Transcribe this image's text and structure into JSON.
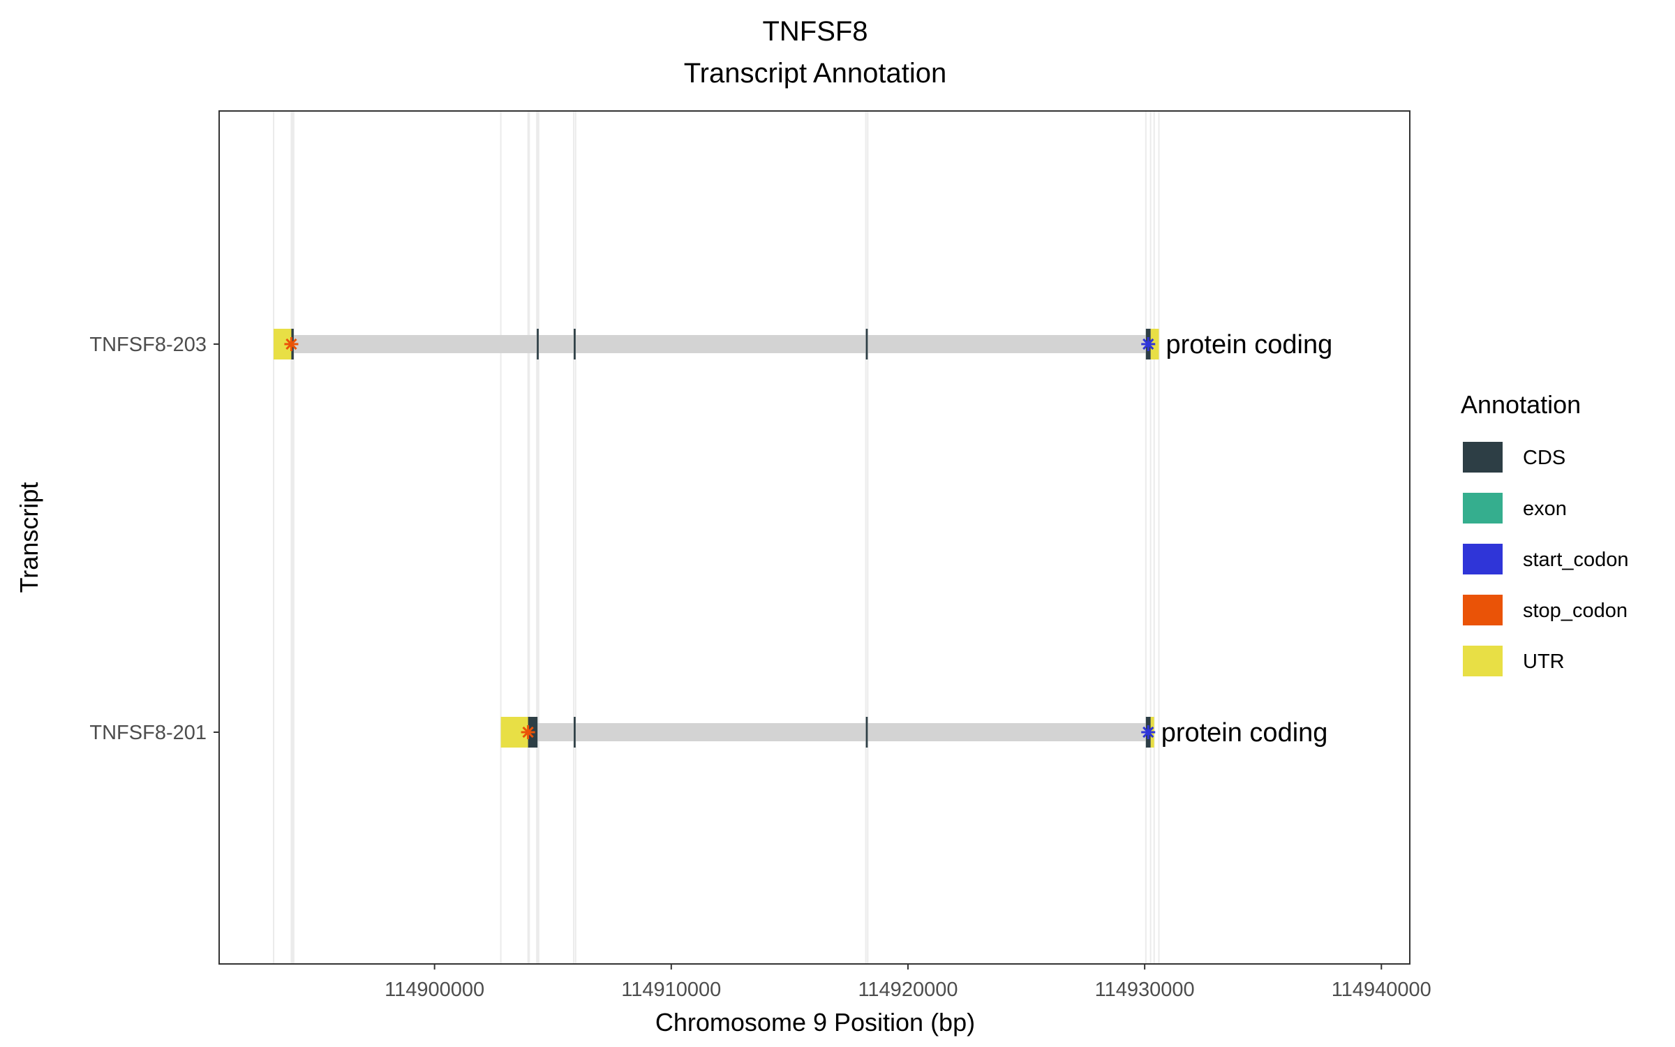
{
  "chart_data": {
    "type": "gene-transcript-annotation",
    "title": "TNFSF8",
    "subtitle": "Transcript Annotation",
    "xlabel": "Chromosome 9 Position (bp)",
    "ylabel": "Transcript",
    "xlim": [
      114890900,
      114941200
    ],
    "x_ticks": [
      114900000,
      114910000,
      114920000,
      114930000,
      114940000
    ],
    "x_tick_labels": [
      "114900000",
      "114910000",
      "114920000",
      "114930000",
      "114940000"
    ],
    "grid": true,
    "legend": {
      "title": "Annotation",
      "position": "right",
      "entries": [
        {
          "label": "CDS",
          "color": "#2d3e45"
        },
        {
          "label": "exon",
          "color": "#35ae8e"
        },
        {
          "label": "start_codon",
          "color": "#2f35d8"
        },
        {
          "label": "stop_codon",
          "color": "#ea5307"
        },
        {
          "label": "UTR",
          "color": "#e8df45"
        }
      ]
    },
    "intron_color": "#d3d3d3",
    "transcripts": [
      {
        "name": "TNFSF8-203",
        "biotype_label": "protein coding",
        "start": 114893200,
        "end": 114930600,
        "utr": [
          [
            114893200,
            114894000
          ],
          [
            114930250,
            114930600
          ]
        ],
        "cds": [
          [
            114893950,
            114894050
          ],
          [
            114904320,
            114904400
          ],
          [
            114905880,
            114905960
          ],
          [
            114918220,
            114918300
          ],
          [
            114930050,
            114930250
          ]
        ],
        "stop_codon": 114893950,
        "start_codon": 114930150
      },
      {
        "name": "TNFSF8-201",
        "biotype_label": "protein coding",
        "start": 114902800,
        "end": 114930400,
        "utr": [
          [
            114902800,
            114904000
          ],
          [
            114930250,
            114930400
          ]
        ],
        "cds": [
          [
            114903950,
            114904350
          ],
          [
            114905880,
            114905960
          ],
          [
            114918220,
            114918300
          ],
          [
            114930050,
            114930250
          ]
        ],
        "stop_codon": 114903950,
        "start_codon": 114930150
      }
    ]
  }
}
